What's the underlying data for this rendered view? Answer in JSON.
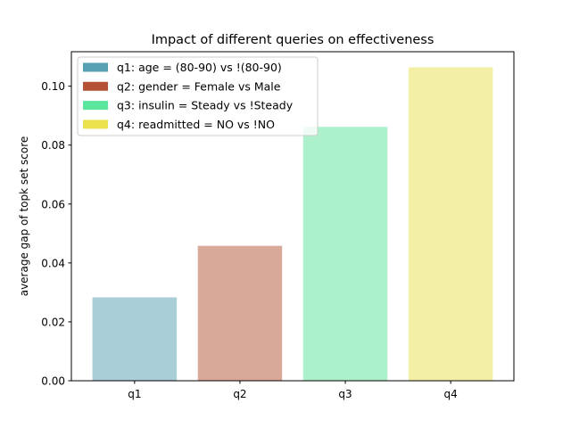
{
  "chart_data": {
    "type": "bar",
    "title": "Impact of different queries on effectiveness",
    "xlabel": "",
    "ylabel": "average gap of topk set score",
    "categories": [
      "q1",
      "q2",
      "q3",
      "q4"
    ],
    "values": [
      0.0283,
      0.0458,
      0.0862,
      0.1064
    ],
    "ylim": [
      0,
      0.1117
    ],
    "yticks": [
      0.0,
      0.02,
      0.04,
      0.06,
      0.08,
      0.1
    ],
    "ytick_labels": [
      "0.00",
      "0.02",
      "0.04",
      "0.06",
      "0.08",
      "0.10"
    ],
    "bar_colors": [
      "#a9ced8",
      "#d8a898",
      "#acf0cc",
      "#f3efa6"
    ],
    "legend": {
      "placement": "top-left",
      "entries": [
        {
          "label": "q1: age = (80-90) vs !(80-90)",
          "color": "#579fb3"
        },
        {
          "label": "q2: gender = Female vs Male",
          "color": "#b55236"
        },
        {
          "label": "q3: insulin = Steady vs !Steady",
          "color": "#5ce59d"
        },
        {
          "label": "q4: readmitted = NO vs !NO",
          "color": "#ebe24f"
        }
      ]
    },
    "grid": false
  }
}
